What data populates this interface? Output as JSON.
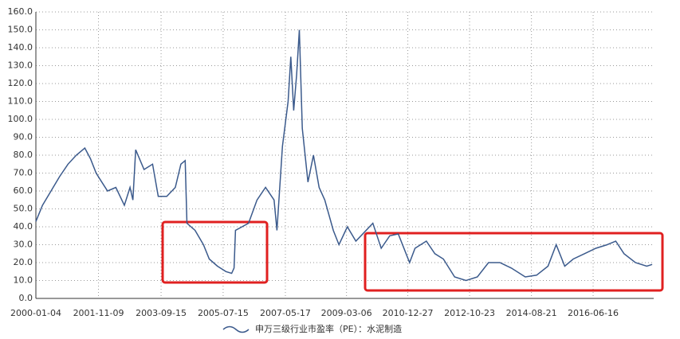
{
  "chart_data": {
    "type": "line",
    "x": [
      "2000-01-04",
      "2000-03-15",
      "2000-06-15",
      "2000-09-15",
      "2000-12-15",
      "2001-03-15",
      "2001-06-15",
      "2001-08-15",
      "2001-10-15",
      "2001-12-15",
      "2002-02-15",
      "2002-05-15",
      "2002-08-15",
      "2002-10-15",
      "2002-11-15",
      "2002-12-15",
      "2003-03-15",
      "2003-06-15",
      "2003-08-15",
      "2003-11-15",
      "2004-02-15",
      "2004-04-15",
      "2004-06-01",
      "2004-06-20",
      "2004-09-15",
      "2004-12-15",
      "2005-02-15",
      "2005-05-15",
      "2005-08-15",
      "2005-10-15",
      "2005-11-10",
      "2005-11-25",
      "2006-04-15",
      "2006-07-15",
      "2006-10-15",
      "2007-01-15",
      "2007-02-15",
      "2007-04-15",
      "2007-06-15",
      "2007-07-15",
      "2007-08-15",
      "2007-09-15",
      "2007-10-15",
      "2007-11-15",
      "2008-01-15",
      "2008-03-15",
      "2008-05-15",
      "2008-07-15",
      "2008-10-15",
      "2008-12-15",
      "2009-03-15",
      "2009-06-15",
      "2009-09-15",
      "2009-12-15",
      "2010-03-15",
      "2010-06-15",
      "2010-09-15",
      "2011-01-15",
      "2011-03-15",
      "2011-07-15",
      "2011-10-15",
      "2012-01-15",
      "2012-05-15",
      "2012-09-15",
      "2013-01-15",
      "2013-05-15",
      "2013-09-15",
      "2014-01-15",
      "2014-06-15",
      "2014-10-15",
      "2015-02-15",
      "2015-05-15",
      "2015-08-15",
      "2015-11-15",
      "2016-03-15",
      "2016-07-15",
      "2016-11-15",
      "2017-02-15",
      "2017-05-15",
      "2017-09-15",
      "2018-01-15",
      "2018-03-15"
    ],
    "series": [
      {
        "name": "申万三级行业市盈率（PE）：水泥制造",
        "color": "#3b5a8c",
        "values": [
          43,
          52,
          60,
          68,
          75,
          80,
          84,
          78,
          70,
          65,
          60,
          62,
          52,
          62,
          55,
          83,
          72,
          75,
          57,
          57,
          62,
          75,
          77,
          42,
          38,
          30,
          22,
          18,
          15,
          14,
          17,
          38,
          42,
          55,
          62,
          55,
          38,
          85,
          110,
          135,
          105,
          125,
          150,
          95,
          65,
          80,
          62,
          55,
          38,
          30,
          40,
          32,
          37,
          42,
          28,
          35,
          36,
          20,
          28,
          32,
          25,
          22,
          12,
          10,
          12,
          20,
          20,
          17,
          12,
          13,
          18,
          30,
          18,
          22,
          25,
          28,
          30,
          32,
          25,
          20,
          18,
          19
        ]
      }
    ],
    "xlim": [
      "2000-01-04",
      "2018-03-31"
    ],
    "xticks": [
      "2000-01-04",
      "2001-11-09",
      "2003-09-15",
      "2005-07-15",
      "2007-05-17",
      "2009-03-06",
      "2010-12-27",
      "2012-10-23",
      "2014-08-21",
      "2016-06-16"
    ],
    "ylim": [
      0,
      160
    ],
    "yticks": [
      {
        "value": 0,
        "label": "0.0"
      },
      {
        "value": 10,
        "label": "10.0"
      },
      {
        "value": 20,
        "label": "20.0"
      },
      {
        "value": 30,
        "label": "30.0"
      },
      {
        "value": 40,
        "label": "40.0"
      },
      {
        "value": 50,
        "label": "50.0"
      },
      {
        "value": 60,
        "label": "60.0"
      },
      {
        "value": 70,
        "label": "70.0"
      },
      {
        "value": 80,
        "label": "80.0"
      },
      {
        "value": 90,
        "label": "90.0"
      },
      {
        "value": 100,
        "label": "100.0"
      },
      {
        "value": 110,
        "label": "110.0"
      },
      {
        "value": 120,
        "label": "120.0"
      },
      {
        "value": 130,
        "label": "130.0"
      },
      {
        "value": 140,
        "label": "140.0"
      },
      {
        "value": 150,
        "label": "150.0"
      },
      {
        "value": 160,
        "label": "160.0"
      }
    ],
    "grid": true
  }
}
